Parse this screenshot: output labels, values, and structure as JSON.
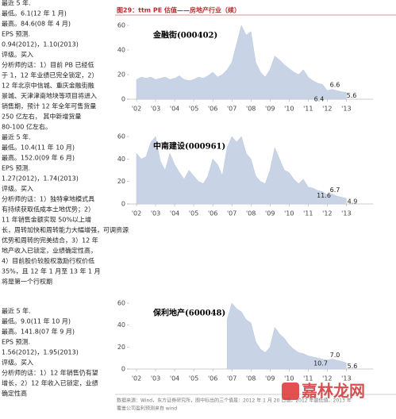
{
  "left_column": [
    "最近 5 年.",
    "最低。6.1(12 年 1 月)",
    "最高。84.6(08 年 4 月)",
    "EPS 预测.",
    "0.94(2012)，1.10(2013)",
    "评级。买入",
    "分析师的话：1）目前 PB 已经低",
    "于 1，12 年业绩已完全锁定，2）",
    "12 年北京中信城、重庆金融街融",
    "景城、天津津南地块等项目将进入",
    "销售期，预计 12 年全年可售货量",
    "250 亿左右，  其中新增货量",
    "80-100 亿左右。",
    "最近 5 年.",
    "最低。10.4(11 年 10 月)",
    "最高。152.0(09 年 6 月)",
    "EPS 预测.",
    "1.27(2012)，1.74(2013)",
    "评级。买入",
    "分析师的话：1）独特拿地模式具",
    "有持续获取低成本土地优势；2）",
    "11 年销售金额实现 50%以上增",
    "长，周转加快和周转能力大幅增强，可调资源",
    "优势和周转的完美结合，3）12 年",
    "地产收入已锁定，业绩确定性高，",
    "4）目前股价较股权激励行权价低",
    "35%，且 12 年 1 月至 13 年 1 月",
    "将是第一个行权期"
  ],
  "left_column_bottom": [
    "最近 5 年.",
    "最低。9.0(11 年 10 月)",
    "最高。141.8(07 年 9 月)",
    "EPS 预测.",
    "1.56(2012)，1.95(2013)",
    "评级。买入",
    "分析师的话：1）12 年销售仍有望",
    "增长，2）12 年收入已锁定，业绩",
    "确定性高"
  ],
  "figure_title": "图29：ttm PE 估值——房地产行业（续）",
  "source": [
    "数据来源：Wind，东方证券研究所，图中标出的三个值是：2012 年 1 月 20 日值，2012 年最低值，2013 年",
    "覆盖公司盈利预测来自 wind"
  ],
  "watermark": "嘉林龙网",
  "chart_data": [
    {
      "type": "area",
      "title": "金融街(000402)",
      "color": "#c8d4e6",
      "x": [
        2002,
        2002.25,
        2002.5,
        2002.75,
        2003,
        2003.25,
        2003.5,
        2003.75,
        2004,
        2004.25,
        2004.5,
        2004.75,
        2005,
        2005.25,
        2005.5,
        2005.75,
        2006,
        2006.25,
        2006.5,
        2006.75,
        2007,
        2007.25,
        2007.5,
        2007.75,
        2008,
        2008.25,
        2008.5,
        2008.75,
        2009,
        2009.25,
        2009.5,
        2009.75,
        2010,
        2010.25,
        2010.5,
        2010.75,
        2011,
        2011.25,
        2011.5,
        2011.75,
        2012,
        2012.25,
        2012.5,
        2012.75,
        2013
      ],
      "values": [
        16,
        18,
        17,
        18,
        16,
        17,
        18,
        16,
        17,
        19,
        16,
        15,
        16,
        18,
        17,
        19,
        22,
        18,
        20,
        24,
        30,
        45,
        60,
        52,
        55,
        30,
        22,
        18,
        24,
        35,
        32,
        28,
        25,
        22,
        20,
        24,
        18,
        15,
        13,
        12,
        7,
        8,
        7,
        6,
        5.6
      ],
      "annotations": [
        6.4,
        6.6,
        5.6
      ],
      "xlim": [
        2001.5,
        2014.4
      ],
      "ylim": [
        0,
        60
      ],
      "yticks": [
        0,
        20,
        40,
        60
      ],
      "xticks": [
        {
          "value": 2002,
          "label": "'02"
        },
        {
          "value": 2003,
          "label": "'03"
        },
        {
          "value": 2004,
          "label": "'04"
        },
        {
          "value": 2005,
          "label": "'05"
        },
        {
          "value": 2006,
          "label": "'06"
        },
        {
          "value": 2007,
          "label": "'07"
        },
        {
          "value": 2008,
          "label": "'08"
        },
        {
          "value": 2009,
          "label": "'09"
        },
        {
          "value": 2010,
          "label": "'10"
        },
        {
          "value": 2011,
          "label": "'11"
        },
        {
          "value": 2012,
          "label": "'12"
        },
        {
          "value": 2013,
          "label": "'13"
        }
      ]
    },
    {
      "type": "area",
      "title": "中南建设(000961)",
      "color": "#c8d4e6",
      "x": [
        2002,
        2002.25,
        2002.5,
        2002.75,
        2003,
        2003.25,
        2003.5,
        2003.75,
        2004,
        2004.25,
        2004.5,
        2004.75,
        2005,
        2005.25,
        2005.5,
        2005.75,
        2006,
        2006.25,
        2006.5,
        2006.75,
        2007,
        2007.25,
        2007.5,
        2007.75,
        2008,
        2008.25,
        2008.5,
        2008.75,
        2009,
        2009.25,
        2009.5,
        2009.75,
        2010,
        2010.25,
        2010.5,
        2010.75,
        2011,
        2011.25,
        2011.5,
        2011.75,
        2012,
        2012.25,
        2012.5,
        2012.75,
        2013
      ],
      "values": [
        45,
        40,
        42,
        55,
        60,
        38,
        30,
        45,
        35,
        28,
        22,
        30,
        25,
        20,
        18,
        25,
        40,
        35,
        25,
        50,
        60,
        55,
        60,
        45,
        40,
        25,
        20,
        18,
        30,
        50,
        40,
        30,
        28,
        22,
        18,
        22,
        15,
        14,
        12,
        11,
        8,
        9,
        7,
        6,
        4.9
      ],
      "annotations": [
        11.6,
        6.7,
        4.9
      ],
      "xlim": [
        2001.5,
        2014.4
      ],
      "ylim": [
        0,
        60
      ],
      "yticks": [
        0,
        20,
        40,
        60
      ],
      "xticks": [
        {
          "value": 2002,
          "label": "'02"
        },
        {
          "value": 2003,
          "label": "'03"
        },
        {
          "value": 2004,
          "label": "'04"
        },
        {
          "value": 2005,
          "label": "'05"
        },
        {
          "value": 2006,
          "label": "'06"
        },
        {
          "value": 2007,
          "label": "'07"
        },
        {
          "value": 2008,
          "label": "'08"
        },
        {
          "value": 2009,
          "label": "'09"
        },
        {
          "value": 2010,
          "label": "'10"
        },
        {
          "value": 2011,
          "label": "'11"
        },
        {
          "value": 2012,
          "label": "'12"
        },
        {
          "value": 2013,
          "label": "'13"
        }
      ]
    },
    {
      "type": "area",
      "title": "保利地产(600048)",
      "color": "#c8d4e6",
      "x": [
        2006.75,
        2007,
        2007.25,
        2007.5,
        2007.75,
        2008,
        2008.25,
        2008.5,
        2008.75,
        2009,
        2009.25,
        2009.5,
        2009.75,
        2010,
        2010.25,
        2010.5,
        2010.75,
        2011,
        2011.25,
        2011.5,
        2011.75,
        2012,
        2012.25,
        2012.5,
        2012.75,
        2013
      ],
      "values": [
        45,
        60,
        55,
        52,
        45,
        42,
        25,
        18,
        15,
        20,
        38,
        32,
        28,
        22,
        18,
        15,
        14,
        12,
        11,
        10,
        9,
        8,
        9,
        8,
        7,
        5.6
      ],
      "annotations": [
        10.7,
        7.0,
        5.6
      ],
      "value_labels": {
        "annotations": [
          "10.7",
          "7.0",
          "5.6"
        ]
      },
      "xlim": [
        2001.5,
        2014.4
      ],
      "ylim": [
        0,
        60
      ],
      "yticks": [
        0,
        20,
        40,
        60
      ],
      "xticks": [
        {
          "value": 2002,
          "label": "'02"
        },
        {
          "value": 2003,
          "label": "'03"
        },
        {
          "value": 2004,
          "label": "'04"
        },
        {
          "value": 2005,
          "label": "'05"
        },
        {
          "value": 2006,
          "label": "'06"
        },
        {
          "value": 2007,
          "label": "'07"
        },
        {
          "value": 2008,
          "label": "'08"
        },
        {
          "value": 2009,
          "label": "'09"
        },
        {
          "value": 2010,
          "label": "'10"
        },
        {
          "value": 2011,
          "label": "'11"
        },
        {
          "value": 2012,
          "label": "'12"
        },
        {
          "value": 2013,
          "label": "'13"
        }
      ]
    }
  ]
}
